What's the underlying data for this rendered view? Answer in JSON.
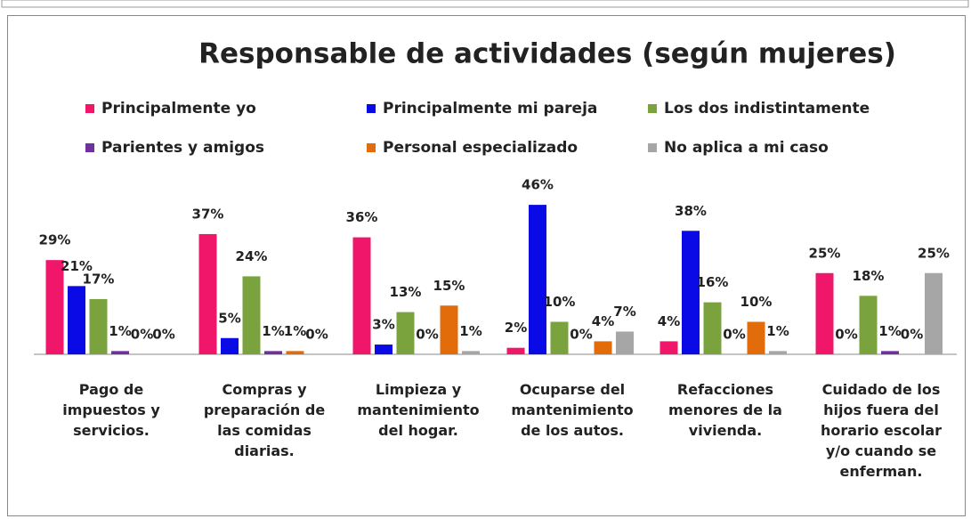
{
  "chart_data": {
    "type": "bar",
    "title": "Responsable de actividades (según mujeres)",
    "categories": [
      "Pago de impuestos y servicios.",
      "Compras y preparación de las comidas diarias.",
      "Limpieza y mantenimiento del hogar.",
      "Ocuparse del mantenimiento de los autos.",
      "Refacciones menores de la vivienda.",
      "Cuidado de los hijos fuera del horario escolar y/o cuando se enferman."
    ],
    "series": [
      {
        "name": "Principalmente yo",
        "color": "#f0166a",
        "values": [
          29,
          37,
          36,
          2,
          4,
          25
        ],
        "value_labels": [
          "29%",
          "37%",
          "36%",
          "2%",
          "4%",
          "25%"
        ]
      },
      {
        "name": "Principalmente mi pareja",
        "color": "#0a0ae6",
        "values": [
          21,
          5,
          3,
          46,
          38,
          0
        ],
        "value_labels": [
          "21%",
          "5%",
          "3%",
          "46%",
          "38%",
          "0%"
        ]
      },
      {
        "name": "Los dos indistintamente",
        "color": "#7aa33e",
        "values": [
          17,
          24,
          13,
          10,
          16,
          18
        ],
        "value_labels": [
          "17%",
          "24%",
          "13%",
          "10%",
          "16%",
          "18%"
        ]
      },
      {
        "name": "Parientes y amigos",
        "color": "#7030a0",
        "values": [
          1,
          1,
          0,
          0,
          0,
          1
        ],
        "value_labels": [
          "1%",
          "1%",
          "0%",
          "0%",
          "0%",
          "1%"
        ]
      },
      {
        "name": "Personal especializado",
        "color": "#e36c0a",
        "values": [
          0,
          1,
          15,
          4,
          10,
          0
        ],
        "value_labels": [
          "0%",
          "1%",
          "15%",
          "4%",
          "10%",
          "0%"
        ]
      },
      {
        "name": "No aplica a mi caso",
        "color": "#a6a6a6",
        "values": [
          0,
          0,
          1,
          7,
          1,
          25
        ],
        "value_labels": [
          "0%",
          "0%",
          "1%",
          "7%",
          "1%",
          "25%"
        ]
      }
    ]
  }
}
